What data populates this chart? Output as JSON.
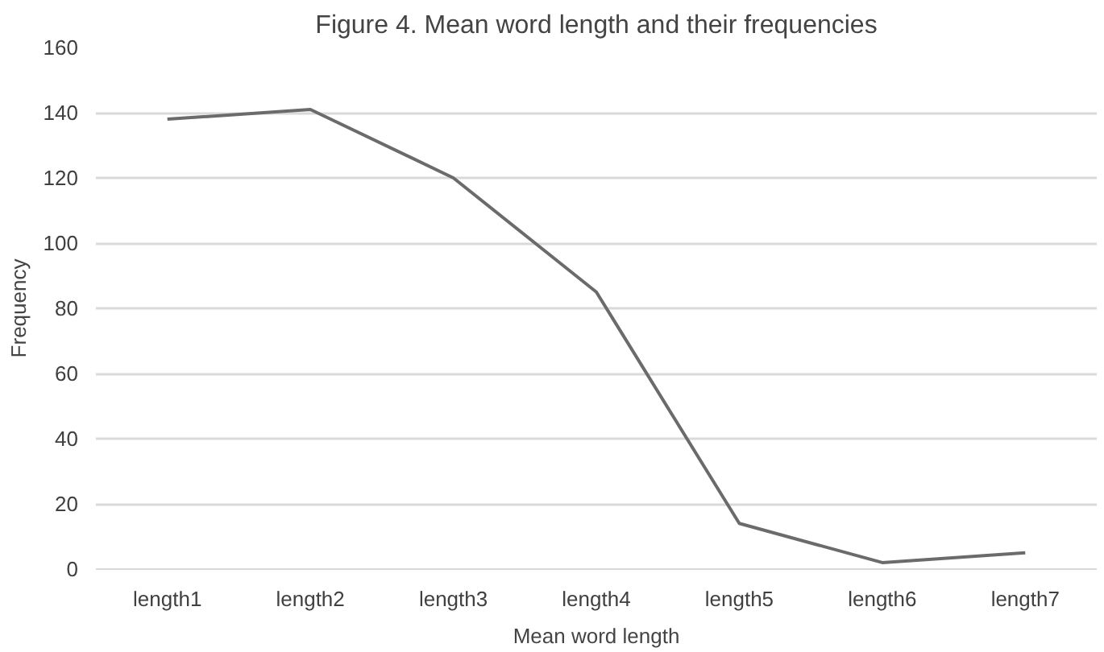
{
  "chart_data": {
    "type": "line",
    "title": "Figure 4. Mean word length and their frequencies",
    "xlabel": "Mean word length",
    "ylabel": "Frequency",
    "categories": [
      "length1",
      "length2",
      "length3",
      "length4",
      "length5",
      "length6",
      "length7"
    ],
    "series": [
      {
        "color": "#6b6b6b",
        "values": [
          138,
          141,
          120,
          85,
          14,
          2,
          5
        ]
      }
    ],
    "ylim": [
      0,
      160
    ],
    "yticks": [
      0,
      20,
      40,
      60,
      80,
      100,
      120,
      140,
      160
    ],
    "grid": "y",
    "marker": "none",
    "line_style": "solid"
  }
}
